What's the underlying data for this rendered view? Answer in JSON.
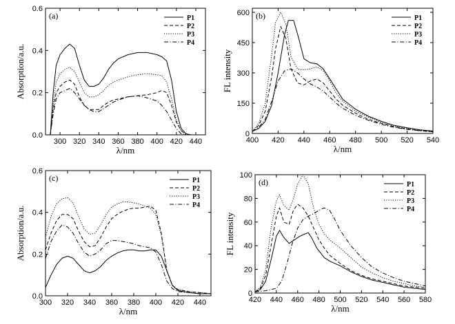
{
  "chart_data": [
    {
      "type": "line",
      "panel": "(a)",
      "xlabel": "λ/nm",
      "ylabel": "Absorption/a.u.",
      "xlim": [
        285,
        450
      ],
      "ylim": [
        0,
        0.6
      ],
      "xticks": [
        300,
        320,
        340,
        360,
        380,
        400,
        420,
        440
      ],
      "yticks": [
        0.0,
        0.2,
        0.4,
        0.6
      ],
      "legend": "top-right",
      "series": [
        {
          "name": "P1",
          "style": "solid",
          "x": [
            290,
            293,
            296,
            300,
            305,
            310,
            315,
            320,
            325,
            330,
            335,
            340,
            345,
            350,
            355,
            360,
            370,
            380,
            390,
            400,
            405,
            410,
            415,
            420,
            425,
            430,
            435
          ],
          "y": [
            0.0,
            0.2,
            0.33,
            0.38,
            0.41,
            0.43,
            0.41,
            0.33,
            0.26,
            0.23,
            0.23,
            0.24,
            0.27,
            0.31,
            0.34,
            0.36,
            0.38,
            0.39,
            0.39,
            0.38,
            0.37,
            0.35,
            0.26,
            0.11,
            0.03,
            0.005,
            0.0
          ]
        },
        {
          "name": "P2",
          "style": "dashed",
          "x": [
            290,
            293,
            296,
            300,
            305,
            310,
            315,
            320,
            325,
            330,
            335,
            340,
            345,
            350,
            355,
            360,
            370,
            380,
            390,
            400,
            405,
            410,
            415,
            420,
            425,
            430,
            435
          ],
          "y": [
            0.0,
            0.12,
            0.2,
            0.23,
            0.25,
            0.26,
            0.24,
            0.18,
            0.14,
            0.12,
            0.12,
            0.12,
            0.14,
            0.155,
            0.165,
            0.17,
            0.18,
            0.185,
            0.19,
            0.2,
            0.21,
            0.2,
            0.14,
            0.06,
            0.02,
            0.0,
            0.0
          ]
        },
        {
          "name": "P3",
          "style": "dotted",
          "x": [
            290,
            293,
            296,
            300,
            305,
            310,
            315,
            320,
            325,
            330,
            335,
            340,
            345,
            350,
            355,
            360,
            370,
            380,
            390,
            400,
            405,
            410,
            415,
            420,
            425,
            430,
            435
          ],
          "y": [
            0.0,
            0.15,
            0.25,
            0.29,
            0.31,
            0.32,
            0.3,
            0.25,
            0.2,
            0.18,
            0.18,
            0.19,
            0.21,
            0.235,
            0.25,
            0.26,
            0.275,
            0.285,
            0.29,
            0.285,
            0.28,
            0.25,
            0.17,
            0.07,
            0.02,
            0.0,
            0.0
          ]
        },
        {
          "name": "P4",
          "style": "dashdot",
          "x": [
            290,
            293,
            296,
            300,
            305,
            310,
            315,
            320,
            325,
            330,
            335,
            340,
            345,
            350,
            355,
            360,
            370,
            380,
            390,
            400,
            405,
            410,
            415,
            420,
            425,
            430,
            435
          ],
          "y": [
            0.0,
            0.1,
            0.17,
            0.2,
            0.21,
            0.22,
            0.2,
            0.17,
            0.14,
            0.12,
            0.11,
            0.11,
            0.125,
            0.14,
            0.155,
            0.165,
            0.18,
            0.185,
            0.175,
            0.16,
            0.14,
            0.11,
            0.07,
            0.03,
            0.005,
            0.0,
            0.0
          ]
        }
      ]
    },
    {
      "type": "line",
      "panel": "(b)",
      "xlabel": "λ/nm",
      "ylabel": "FL intensity",
      "xlim": [
        400,
        540
      ],
      "ylim": [
        0,
        620
      ],
      "xticks": [
        400,
        420,
        440,
        460,
        480,
        500,
        520,
        540
      ],
      "yticks": [
        0,
        150,
        300,
        450,
        600
      ],
      "legend": "top-right",
      "series": [
        {
          "name": "P1",
          "style": "solid",
          "x": [
            400,
            405,
            410,
            415,
            420,
            425,
            428,
            432,
            436,
            440,
            445,
            450,
            455,
            460,
            465,
            470,
            480,
            490,
            500,
            510,
            520,
            530,
            540
          ],
          "y": [
            10,
            25,
            60,
            140,
            300,
            490,
            560,
            560,
            470,
            370,
            350,
            345,
            320,
            270,
            220,
            170,
            120,
            85,
            60,
            40,
            28,
            18,
            12
          ]
        },
        {
          "name": "P2",
          "style": "dashed",
          "x": [
            400,
            405,
            410,
            415,
            418,
            422,
            426,
            430,
            435,
            440,
            445,
            450,
            455,
            460,
            465,
            470,
            480,
            490,
            500,
            510,
            520,
            530,
            540
          ],
          "y": [
            10,
            40,
            110,
            280,
            420,
            530,
            470,
            320,
            250,
            240,
            260,
            270,
            250,
            210,
            170,
            140,
            100,
            70,
            50,
            33,
            22,
            14,
            9
          ]
        },
        {
          "name": "P3",
          "style": "dotted",
          "x": [
            400,
            405,
            410,
            415,
            418,
            422,
            426,
            430,
            435,
            440,
            445,
            450,
            455,
            460,
            465,
            470,
            480,
            490,
            500,
            510,
            520,
            530,
            540
          ],
          "y": [
            10,
            50,
            150,
            390,
            550,
            600,
            540,
            380,
            320,
            315,
            320,
            330,
            310,
            260,
            200,
            160,
            110,
            80,
            55,
            36,
            24,
            15,
            10
          ]
        },
        {
          "name": "P4",
          "style": "dashdot",
          "x": [
            400,
            405,
            410,
            415,
            420,
            425,
            430,
            435,
            440,
            445,
            450,
            455,
            460,
            465,
            470,
            480,
            490,
            500,
            510,
            520,
            530,
            540
          ],
          "y": [
            10,
            30,
            70,
            160,
            260,
            310,
            320,
            300,
            270,
            245,
            230,
            210,
            180,
            150,
            125,
            90,
            65,
            45,
            30,
            20,
            13,
            8
          ]
        }
      ]
    },
    {
      "type": "line",
      "panel": "(c)",
      "xlabel": "λ/nm",
      "ylabel": "Absorption/a.u.",
      "xlim": [
        300,
        450
      ],
      "ylim": [
        0,
        0.6
      ],
      "xticks": [
        300,
        320,
        340,
        360,
        380,
        400,
        420,
        440
      ],
      "yticks": [
        0.0,
        0.2,
        0.4,
        0.6
      ],
      "legend": "top-right",
      "series": [
        {
          "name": "P1",
          "style": "solid",
          "x": [
            300,
            305,
            310,
            315,
            320,
            325,
            330,
            335,
            340,
            345,
            350,
            355,
            360,
            365,
            370,
            375,
            380,
            385,
            390,
            395,
            400,
            405,
            410,
            415,
            420,
            430,
            440,
            450
          ],
          "y": [
            0.04,
            0.1,
            0.15,
            0.18,
            0.19,
            0.18,
            0.15,
            0.12,
            0.11,
            0.12,
            0.14,
            0.17,
            0.19,
            0.205,
            0.215,
            0.22,
            0.22,
            0.215,
            0.215,
            0.22,
            0.22,
            0.19,
            0.12,
            0.05,
            0.025,
            0.015,
            0.01,
            0.01
          ]
        },
        {
          "name": "P2",
          "style": "dashed",
          "x": [
            300,
            305,
            310,
            315,
            320,
            325,
            330,
            335,
            340,
            345,
            350,
            355,
            360,
            365,
            370,
            375,
            380,
            385,
            390,
            395,
            400,
            405,
            410,
            415,
            420,
            430,
            440,
            450
          ],
          "y": [
            0.22,
            0.3,
            0.36,
            0.39,
            0.39,
            0.37,
            0.31,
            0.26,
            0.235,
            0.24,
            0.28,
            0.33,
            0.37,
            0.39,
            0.405,
            0.415,
            0.42,
            0.42,
            0.425,
            0.43,
            0.41,
            0.3,
            0.12,
            0.05,
            0.03,
            0.02,
            0.015,
            0.01
          ]
        },
        {
          "name": "P3",
          "style": "dotted",
          "x": [
            300,
            305,
            310,
            315,
            320,
            325,
            330,
            335,
            340,
            345,
            350,
            355,
            360,
            365,
            370,
            375,
            380,
            385,
            390,
            395,
            400,
            405,
            410,
            415,
            420,
            430,
            440,
            450
          ],
          "y": [
            0.28,
            0.38,
            0.44,
            0.465,
            0.47,
            0.445,
            0.38,
            0.32,
            0.295,
            0.3,
            0.34,
            0.39,
            0.425,
            0.44,
            0.45,
            0.45,
            0.445,
            0.44,
            0.43,
            0.42,
            0.39,
            0.29,
            0.12,
            0.05,
            0.03,
            0.02,
            0.015,
            0.01
          ]
        },
        {
          "name": "P4",
          "style": "dashdot",
          "x": [
            300,
            305,
            310,
            315,
            320,
            325,
            330,
            335,
            340,
            345,
            350,
            355,
            360,
            365,
            370,
            375,
            380,
            385,
            390,
            395,
            400,
            405,
            410,
            415,
            420,
            430,
            440,
            450
          ],
          "y": [
            0.18,
            0.26,
            0.31,
            0.34,
            0.33,
            0.3,
            0.25,
            0.21,
            0.19,
            0.2,
            0.22,
            0.25,
            0.265,
            0.265,
            0.26,
            0.255,
            0.25,
            0.24,
            0.235,
            0.23,
            0.21,
            0.15,
            0.07,
            0.035,
            0.02,
            0.015,
            0.01,
            0.01
          ]
        }
      ]
    },
    {
      "type": "line",
      "panel": "(d)",
      "xlabel": "λ/nm",
      "ylabel": "FL intensity",
      "xlim": [
        420,
        580
      ],
      "ylim": [
        0,
        100
      ],
      "xticks": [
        420,
        440,
        460,
        480,
        500,
        520,
        540,
        560,
        580
      ],
      "yticks": [
        0,
        20,
        40,
        60,
        80,
        100
      ],
      "legend": "top-right",
      "series": [
        {
          "name": "P1",
          "style": "solid",
          "x": [
            420,
            425,
            430,
            435,
            440,
            443,
            447,
            452,
            457,
            462,
            467,
            470,
            473,
            478,
            485,
            490,
            500,
            510,
            520,
            530,
            540,
            550,
            560,
            570,
            580
          ],
          "y": [
            1,
            3,
            10,
            28,
            48,
            53,
            47,
            42,
            45,
            48,
            50,
            51,
            47,
            38,
            30,
            27,
            23,
            18,
            14,
            11,
            9,
            7,
            5,
            4,
            3
          ]
        },
        {
          "name": "P2",
          "style": "dashed",
          "x": [
            420,
            425,
            430,
            435,
            440,
            443,
            447,
            452,
            456,
            460,
            465,
            470,
            475,
            480,
            485,
            490,
            500,
            510,
            520,
            530,
            540,
            550,
            560,
            570,
            580
          ],
          "y": [
            1,
            4,
            15,
            40,
            65,
            72,
            60,
            58,
            70,
            75,
            72,
            65,
            55,
            45,
            38,
            32,
            25,
            19,
            15,
            12,
            10,
            8,
            6,
            5,
            4
          ]
        },
        {
          "name": "P3",
          "style": "dotted",
          "x": [
            420,
            425,
            430,
            435,
            440,
            443,
            447,
            452,
            456,
            460,
            465,
            470,
            475,
            480,
            485,
            490,
            500,
            510,
            520,
            530,
            540,
            550,
            560,
            570,
            580
          ],
          "y": [
            1,
            5,
            20,
            55,
            78,
            83,
            74,
            70,
            80,
            92,
            100,
            92,
            72,
            58,
            50,
            45,
            38,
            30,
            22,
            17,
            13,
            10,
            8,
            6,
            5
          ]
        },
        {
          "name": "P4",
          "style": "dashdot",
          "x": [
            420,
            430,
            440,
            445,
            450,
            455,
            460,
            465,
            470,
            475,
            480,
            485,
            490,
            495,
            500,
            510,
            520,
            530,
            540,
            550,
            560,
            570,
            580
          ],
          "y": [
            1,
            2,
            4,
            10,
            25,
            42,
            55,
            62,
            65,
            67,
            70,
            72,
            70,
            62,
            53,
            40,
            30,
            22,
            17,
            13,
            10,
            8,
            6
          ]
        }
      ]
    }
  ]
}
